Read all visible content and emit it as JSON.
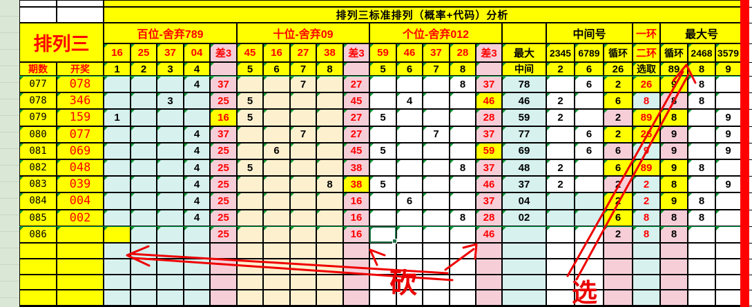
{
  "window": {
    "title_row": "排列三标准排列（概率+代码）分析",
    "brand": "排列三"
  },
  "headers": {
    "period": "期数",
    "draw": "开奖",
    "groups": [
      {
        "label": "百位-舍弃789",
        "cols": [
          "16",
          "25",
          "37",
          "04",
          "差3"
        ],
        "subs": [
          "1",
          "2",
          "3",
          "4",
          ""
        ]
      },
      {
        "label": "十位-舍弃09",
        "cols": [
          "45",
          "16",
          "27",
          "38",
          "差3"
        ],
        "subs": [
          "5",
          "6",
          "7",
          "8",
          ""
        ]
      },
      {
        "label": "个位-舍弃012",
        "cols": [
          "59",
          "46",
          "37",
          "28",
          "差3"
        ],
        "subs": [
          "5",
          "6",
          "7",
          "8",
          ""
        ]
      }
    ],
    "max": {
      "col": "最大",
      "sub": "中间"
    },
    "middle": {
      "label": "中间号",
      "cols": [
        "2345",
        "6789",
        "循环"
      ],
      "subs": [
        "2",
        "6",
        "26"
      ]
    },
    "ring": {
      "top": "一环",
      "mid": "二环",
      "sub": "选取"
    },
    "big": {
      "label": "最大号",
      "cols": [
        "循环",
        "2468",
        "3579"
      ],
      "subs": [
        "89",
        "8",
        "9"
      ]
    }
  },
  "rows": [
    {
      "period": "077",
      "draw": "078",
      "b": [
        "",
        "",
        "",
        "4"
      ],
      "b1Hl": false,
      "bd": "37",
      "bdHl": false,
      "t": [
        "",
        "",
        "7",
        ""
      ],
      "td": "27",
      "tdHl": false,
      "g": [
        "",
        "",
        "",
        "8"
      ],
      "gd": "37",
      "gdHl": false,
      "max": "78",
      "m2345": "",
      "m6789": "6",
      "mid_cyan": false,
      "mloop": "2",
      "mloop_bg": "yellow",
      "ring": "26",
      "ring_bg": "yellow",
      "xloop": "9",
      "xloop_bg": "yellow",
      "x2468": "8",
      "x3579": "",
      "selected_g": null
    },
    {
      "period": "078",
      "draw": "346",
      "b": [
        "",
        "",
        "3",
        ""
      ],
      "b1Hl": false,
      "bd": "25",
      "bdHl": false,
      "t": [
        "5",
        "",
        "",
        ""
      ],
      "td": "45",
      "tdHl": false,
      "g": [
        "",
        "4",
        "",
        ""
      ],
      "gd": "46",
      "gdHl": true,
      "max": "46",
      "m2345": "2",
      "m6789": "",
      "mid_cyan": false,
      "mloop": "6",
      "mloop_bg": "yellow",
      "ring": "8",
      "ring_bg": "cyan",
      "xloop": "8",
      "xloop_bg": "pink",
      "x2468": "8",
      "x3579": "",
      "selected_g": null
    },
    {
      "period": "079",
      "draw": "159",
      "b": [
        "1",
        "",
        "",
        ""
      ],
      "b1Hl": false,
      "bd": "16",
      "bdHl": true,
      "t": [
        "5",
        "",
        "",
        ""
      ],
      "td": "27",
      "tdHl": false,
      "g": [
        "5",
        "",
        "",
        ""
      ],
      "gd": "28",
      "gdHl": false,
      "max": "59",
      "m2345": "2",
      "m6789": "",
      "mid_cyan": false,
      "mloop": "2",
      "mloop_bg": "pink",
      "ring": "89",
      "ring_bg": "yellow",
      "xloop": "8",
      "xloop_bg": "yellow",
      "x2468": "",
      "x3579": "9",
      "selected_g": null
    },
    {
      "period": "080",
      "draw": "077",
      "b": [
        "",
        "",
        "",
        "4"
      ],
      "b1Hl": false,
      "bd": "37",
      "bdHl": false,
      "t": [
        "",
        "",
        "7",
        ""
      ],
      "td": "27",
      "tdHl": false,
      "g": [
        "",
        "",
        "7",
        ""
      ],
      "gd": "37",
      "gdHl": false,
      "max": "77",
      "m2345": "",
      "m6789": "6",
      "mid_cyan": false,
      "mloop": "2",
      "mloop_bg": "yellow",
      "ring": "26",
      "ring_bg": "yellow",
      "xloop": "9",
      "xloop_bg": "pink",
      "x2468": "",
      "x3579": "9",
      "selected_g": null
    },
    {
      "period": "081",
      "draw": "069",
      "b": [
        "",
        "",
        "",
        "4"
      ],
      "b1Hl": false,
      "bd": "25",
      "bdHl": false,
      "t": [
        "",
        "6",
        "",
        ""
      ],
      "td": "45",
      "tdHl": false,
      "g": [
        "5",
        "",
        "",
        ""
      ],
      "gd": "59",
      "gdHl": true,
      "max": "69",
      "m2345": "",
      "m6789": "6",
      "mid_cyan": false,
      "mloop": "6",
      "mloop_bg": "pink",
      "ring": "9",
      "ring_bg": "cyan",
      "xloop": "9",
      "xloop_bg": "pink",
      "x2468": "",
      "x3579": "9",
      "selected_g": null
    },
    {
      "period": "082",
      "draw": "048",
      "b": [
        "",
        "",
        "",
        "4"
      ],
      "b1Hl": false,
      "bd": "25",
      "bdHl": false,
      "t": [
        "5",
        "",
        "",
        ""
      ],
      "td": "38",
      "tdHl": false,
      "g": [
        "",
        "",
        "",
        "8"
      ],
      "gd": "37",
      "gdHl": false,
      "max": "48",
      "m2345": "2",
      "m6789": "",
      "mid_cyan": false,
      "mloop": "6",
      "mloop_bg": "yellow",
      "ring": "89",
      "ring_bg": "yellow",
      "xloop": "9",
      "xloop_bg": "yellow",
      "x2468": "8",
      "x3579": "",
      "selected_g": null
    },
    {
      "period": "083",
      "draw": "039",
      "b": [
        "",
        "",
        "",
        "4"
      ],
      "b1Hl": false,
      "bd": "25",
      "bdHl": false,
      "t": [
        "",
        "",
        "",
        "8"
      ],
      "td": "38",
      "tdHl": true,
      "g": [
        "5",
        "",
        "",
        ""
      ],
      "gd": "46",
      "gdHl": false,
      "max": "37",
      "m2345": "2",
      "m6789": "",
      "mid_cyan": false,
      "mloop": "2",
      "mloop_bg": "pink",
      "ring": "2",
      "ring_bg": "cyan",
      "xloop": "8",
      "xloop_bg": "yellow",
      "x2468": "",
      "x3579": "9",
      "selected_g": null
    },
    {
      "period": "084",
      "draw": "004",
      "b": [
        "",
        "",
        "",
        "4"
      ],
      "b1Hl": false,
      "bd": "25",
      "bdHl": false,
      "t": [
        "",
        "",
        "",
        ""
      ],
      "td": "16",
      "tdHl": false,
      "g": [
        "",
        "6",
        "",
        ""
      ],
      "gd": "37",
      "gdHl": false,
      "max": "04",
      "m2345": "",
      "m6789": "",
      "mid_cyan": true,
      "mloop": "2",
      "mloop_bg": "yellow",
      "ring": "2",
      "ring_bg": "cyan",
      "xloop": "9",
      "xloop_bg": "yellow",
      "x2468": "8",
      "x3579": "",
      "selected_g": null
    },
    {
      "period": "085",
      "draw": "002",
      "b": [
        "",
        "",
        "",
        "4"
      ],
      "b1Hl": false,
      "bd": "25",
      "bdHl": false,
      "t": [
        "",
        "",
        "",
        ""
      ],
      "td": "16",
      "tdHl": false,
      "g": [
        "",
        "",
        "",
        "8"
      ],
      "gd": "28",
      "gdHl": false,
      "max": "02",
      "m2345": "",
      "m6789": "",
      "mid_cyan": true,
      "mloop": "6",
      "mloop_bg": "yellow",
      "ring": "8",
      "ring_bg": "cyan",
      "xloop": "8",
      "xloop_bg": "pink",
      "x2468": "8",
      "x3579": "",
      "selected_g": null
    },
    {
      "period": "086",
      "draw": "",
      "b": [
        "",
        "",
        "",
        ""
      ],
      "b1Hl": true,
      "bd": "25",
      "bdHl": false,
      "t": [
        "",
        "",
        "",
        ""
      ],
      "td": "16",
      "tdHl": false,
      "g": [
        "",
        "",
        "",
        ""
      ],
      "gd": "46",
      "gdHl": false,
      "max": "",
      "m2345": "",
      "m6789": "",
      "mid_cyan": false,
      "mloop": "2",
      "mloop_bg": "pink",
      "ring": "8",
      "ring_bg": "cyan",
      "xloop": "8",
      "xloop_bg": "pink",
      "x2468": "",
      "x3579": "",
      "selected_g": 0
    }
  ],
  "annotations": {
    "chop": "砍",
    "select": "选"
  },
  "colors": {
    "yellow": "#ffff00",
    "pink": "#f6ced8",
    "cyan": "#d6f1ee",
    "cream": "#fcf0ce",
    "white": "#ffffff",
    "left_strip": "#dbe7d6",
    "red_text": "#fe0000",
    "red_bar": "#fe0000",
    "grid": "#000000",
    "selection_green": "#1e7145",
    "comment_triangle": "#0c9c34",
    "freeze_line": "#00b050"
  }
}
